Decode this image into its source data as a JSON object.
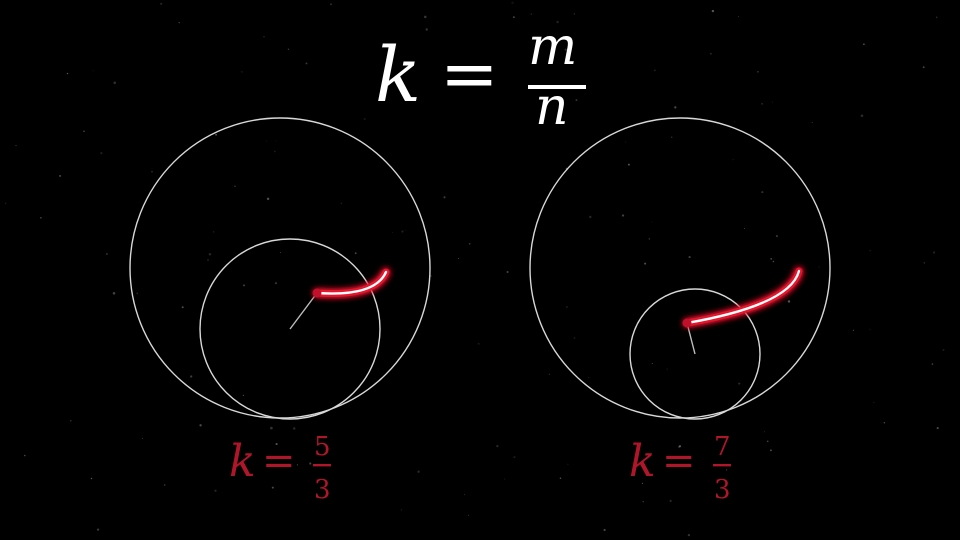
{
  "title": {
    "lhs": "k",
    "eq": "=",
    "num": "m",
    "den": "n"
  },
  "diagrams": [
    {
      "id": "left",
      "ratio": {
        "lhs": "k",
        "eq": "=",
        "num": "5",
        "den": "3"
      },
      "k_num": 5,
      "k_den": 3
    },
    {
      "id": "right",
      "ratio": {
        "lhs": "k",
        "eq": "=",
        "num": "7",
        "den": "3"
      },
      "k_num": 7,
      "k_den": 3
    }
  ],
  "colors": {
    "background": "#000000",
    "circle": "#d8d8d8",
    "trace": "#e3162e",
    "trace_core": "#ffffff",
    "label": "#b0162a",
    "title": "#ffffff"
  }
}
